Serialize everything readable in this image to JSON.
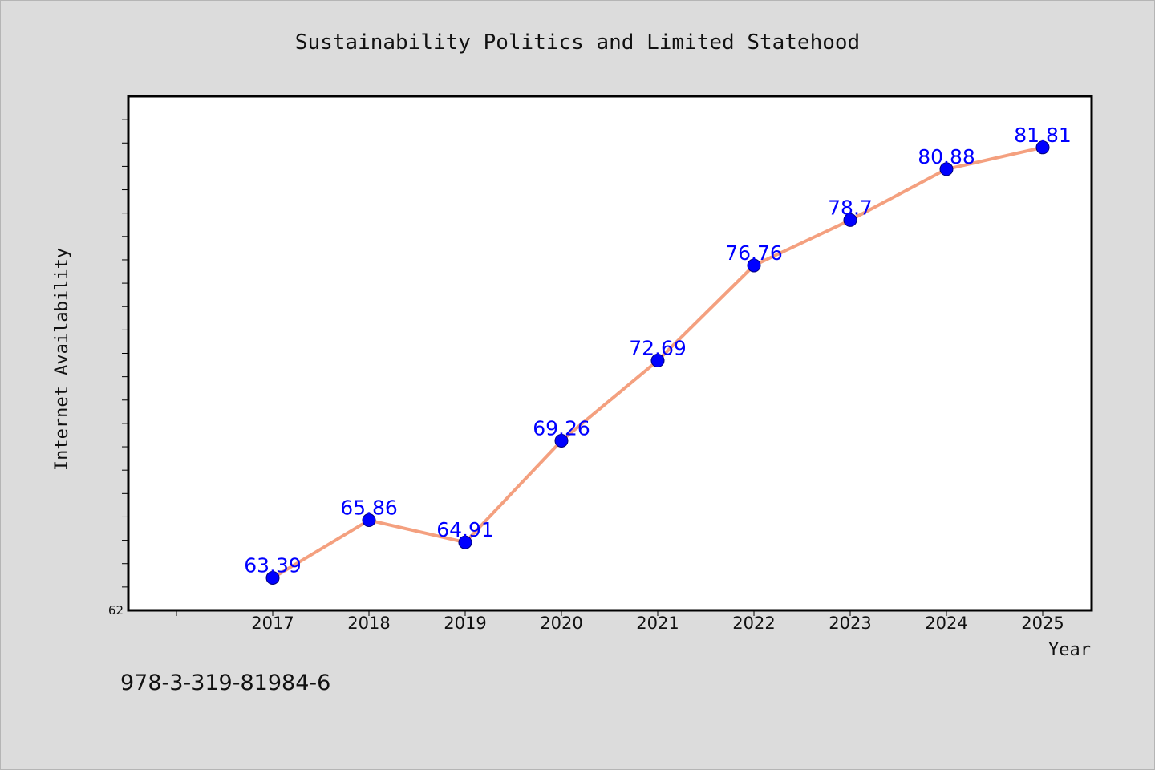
{
  "footer": {
    "code": "978-3-319-81984-6"
  },
  "chart_data": {
    "type": "line",
    "title": "Sustainability Politics and Limited Statehood",
    "xlabel": "Year",
    "ylabel": "Internet Availability",
    "x": [
      "2017",
      "2018",
      "2019",
      "2020",
      "2021",
      "2022",
      "2023",
      "2024",
      "2025"
    ],
    "series": [
      {
        "values": [
          63.39,
          65.86,
          64.91,
          69.26,
          72.69,
          76.76,
          78.7,
          80.88,
          81.81
        ]
      }
    ],
    "data_labels": [
      "63.39",
      "65.86",
      "64.91",
      "69.26",
      "72.69",
      "76.76",
      "78.7",
      "80.88",
      "81.81"
    ],
    "y_tick_labels": [
      "62"
    ],
    "ylim": [
      62,
      84
    ],
    "y_minor_tick_step": 1,
    "line_color": "#f4a07f",
    "marker_color": "#0000ff",
    "label_color": "#0000ff",
    "grid": false,
    "legend": false
  }
}
